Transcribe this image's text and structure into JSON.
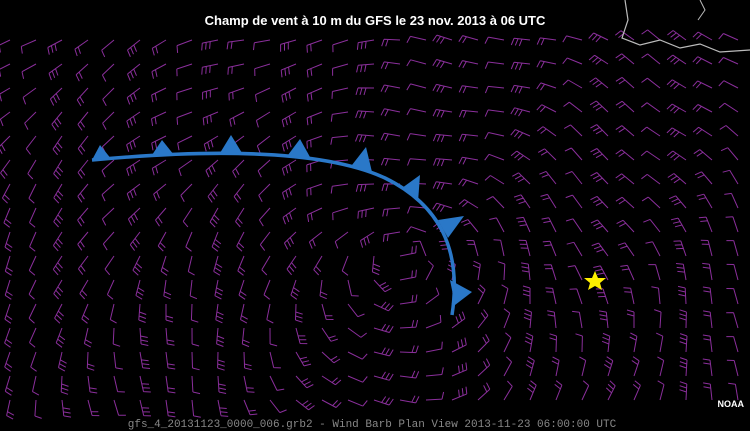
{
  "header": {
    "title": "Champ de vent à 10 m du GFS le 23 nov. 2013 à 06 UTC"
  },
  "footer": {
    "file_label": "gfs_4_20131123_0000_006.grb2 - Wind Barb Plan View 2013-11-23 06:00:00 UTC",
    "credit": "NOAA"
  }
}
